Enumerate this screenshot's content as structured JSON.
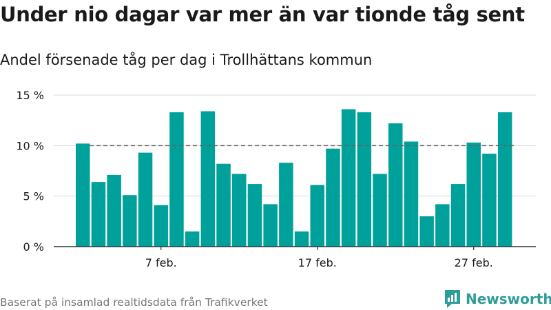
{
  "title": "Under nio dagar var mer än var tionde tåg sent",
  "subtitle": "Andel försenade tåg per dag i Trollhättans kommun",
  "footer": "Baserat på insamlad realtidsdata från Trafikverket",
  "brand": "Newsworthy",
  "colors": {
    "bar": "#00a19a",
    "grid": "#d9d9d9",
    "reference": "#666666",
    "brand": "#2e9c98"
  },
  "chart_data": {
    "type": "bar",
    "categories": [
      "2 feb.",
      "3 feb.",
      "4 feb.",
      "5 feb.",
      "6 feb.",
      "7 feb.",
      "8 feb.",
      "9 feb.",
      "10 feb.",
      "11 feb.",
      "12 feb.",
      "13 feb.",
      "14 feb.",
      "15 feb.",
      "16 feb.",
      "17 feb.",
      "18 feb.",
      "19 feb.",
      "20 feb.",
      "21 feb.",
      "22 feb.",
      "23 feb.",
      "24 feb.",
      "25 feb.",
      "26 feb.",
      "27 feb.",
      "28 feb.",
      "1 mar."
    ],
    "values": [
      10.2,
      6.4,
      7.1,
      5.1,
      9.3,
      4.1,
      13.3,
      1.5,
      13.4,
      8.2,
      7.2,
      6.2,
      4.2,
      8.3,
      1.5,
      6.1,
      9.7,
      13.6,
      13.3,
      7.2,
      12.2,
      10.4,
      3.0,
      4.2,
      6.2,
      10.3,
      9.2,
      13.3
    ],
    "ylim": [
      0,
      15
    ],
    "yticks": [
      0,
      5,
      10,
      15
    ],
    "ytick_labels": [
      "0 %",
      "5 %",
      "10 %",
      "15 %"
    ],
    "xtick_labels": [
      "7 feb.",
      "17 feb.",
      "27 feb."
    ],
    "xtick_categories": [
      "7 feb.",
      "17 feb.",
      "27 feb."
    ],
    "reference_line": 10,
    "grid": true,
    "legend": "none"
  }
}
